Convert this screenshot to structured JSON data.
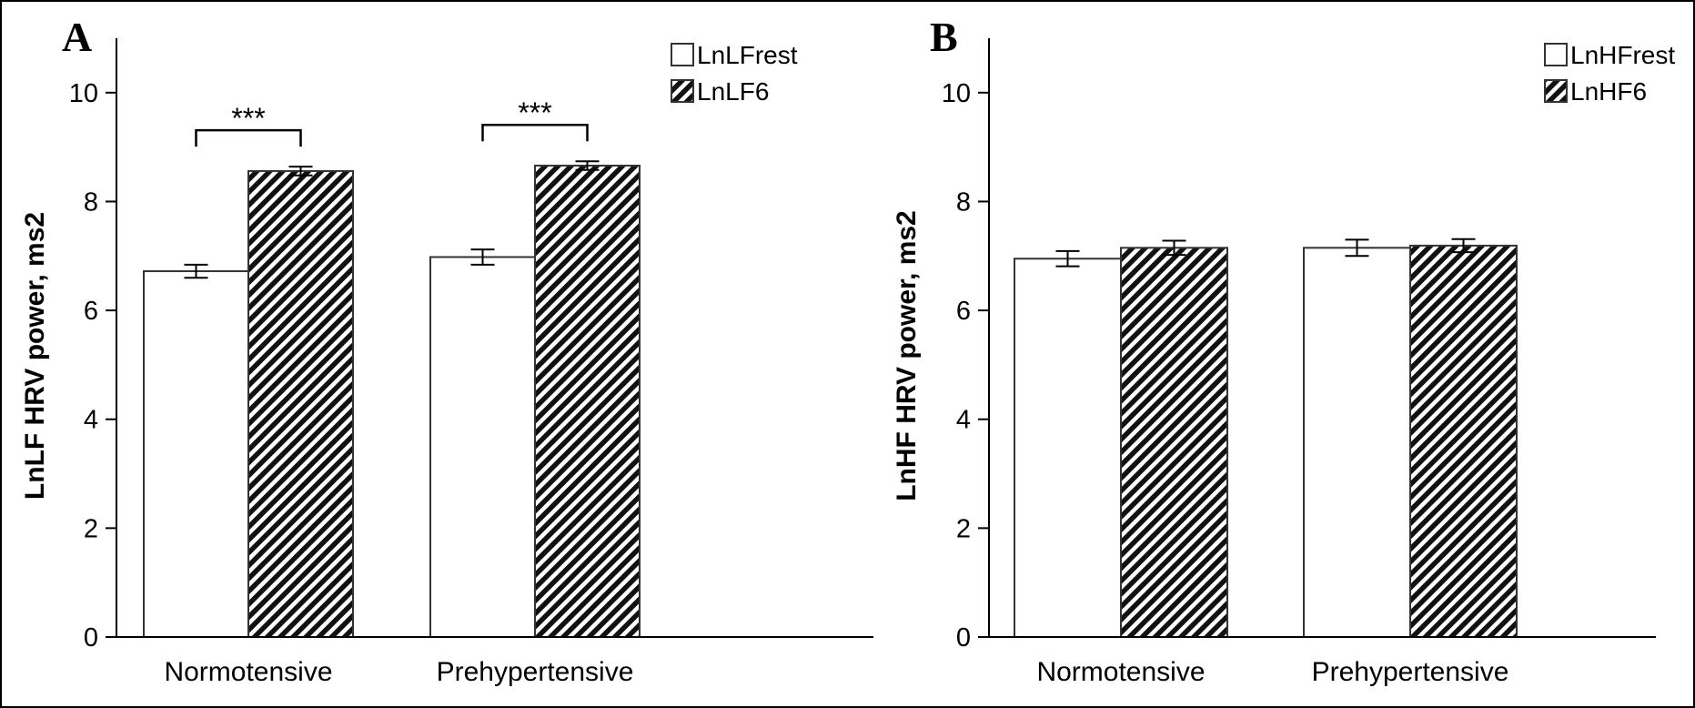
{
  "chart_data": [
    {
      "type": "bar",
      "panel_label": "A",
      "title": "",
      "xlabel": "",
      "ylabel": "LnLF HRV power, ms2",
      "ylim": [
        0,
        11
      ],
      "yticks": [
        0,
        2,
        4,
        6,
        8,
        10
      ],
      "categories": [
        "Normotensive",
        "Prehypertensive"
      ],
      "legend_position": "top-right",
      "series": [
        {
          "name": "LnLFrest",
          "fill": "white",
          "values": [
            6.72,
            6.98
          ],
          "errors": [
            0.12,
            0.14
          ]
        },
        {
          "name": "LnLF6",
          "fill": "hatched",
          "values": [
            8.56,
            8.66
          ],
          "errors": [
            0.08,
            0.08
          ]
        }
      ],
      "annotations": [
        {
          "text": "***",
          "category_index": 0
        },
        {
          "text": "***",
          "category_index": 1
        }
      ]
    },
    {
      "type": "bar",
      "panel_label": "B",
      "title": "",
      "xlabel": "",
      "ylabel": "LnHF HRV power, ms2",
      "ylim": [
        0,
        11
      ],
      "yticks": [
        0,
        2,
        4,
        6,
        8,
        10
      ],
      "categories": [
        "Normotensive",
        "Prehypertensive"
      ],
      "legend_position": "top-right",
      "series": [
        {
          "name": "LnHFrest",
          "fill": "white",
          "values": [
            6.95,
            7.15
          ],
          "errors": [
            0.14,
            0.15
          ]
        },
        {
          "name": "LnHF6",
          "fill": "hatched",
          "values": [
            7.15,
            7.19
          ],
          "errors": [
            0.13,
            0.12
          ]
        }
      ],
      "annotations": []
    }
  ]
}
